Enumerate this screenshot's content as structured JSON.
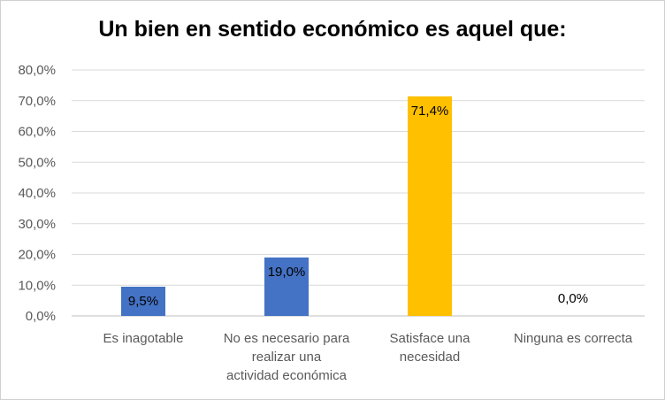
{
  "chart_data": {
    "type": "bar",
    "title": "Un bien en sentido económico es aquel que:",
    "categories": [
      [
        "Es inagotable"
      ],
      [
        "No es necesario para",
        "realizar una",
        "actividad económica"
      ],
      [
        "Satisface una",
        "necesidad"
      ],
      [
        "Ninguna es correcta"
      ]
    ],
    "values": [
      9.5,
      19.0,
      71.4,
      0.0
    ],
    "data_labels": [
      "9,5%",
      "19,0%",
      "71,4%",
      "0,0%"
    ],
    "bar_colors": [
      "#4472C4",
      "#4472C4",
      "#FFC000",
      "#4472C4"
    ],
    "ylim": [
      0,
      80
    ],
    "yticks": [
      0,
      10,
      20,
      30,
      40,
      50,
      60,
      70,
      80
    ],
    "ytick_labels": [
      "0,0%",
      "10,0%",
      "20,0%",
      "30,0%",
      "40,0%",
      "50,0%",
      "60,0%",
      "70,0%",
      "80,0%"
    ],
    "grid": true,
    "legend": "none",
    "xlabel": "",
    "ylabel": ""
  }
}
